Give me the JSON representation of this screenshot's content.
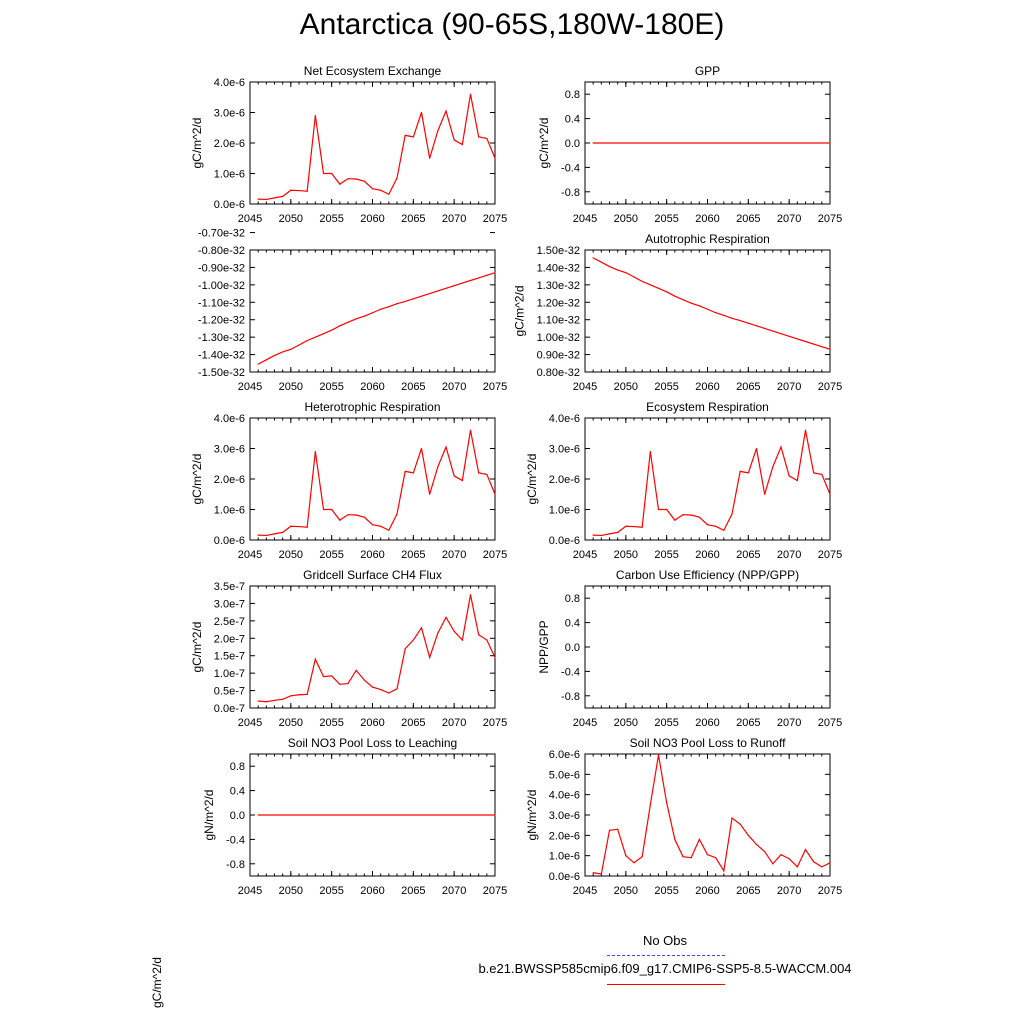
{
  "title": "Antarctica (90-65S,180W-180E)",
  "legend": {
    "obs_label": "No Obs",
    "model_label": "b.e21.BWSSP585cmip6.f09_g17.CMIP6-SSP5-8.5-WACCM.004",
    "obs_color": "#4444ff",
    "model_color": "#ff0000"
  },
  "stray_label": "gC/m^2/d",
  "chart_data": [
    {
      "id": "nee",
      "type": "line",
      "title": "Net Ecosystem Exchange",
      "ylabel": "gC/m^2/d",
      "xlabel": "",
      "xlim": [
        2045,
        2075
      ],
      "ylim": [
        0,
        4e-06
      ],
      "xticks": [
        2045,
        2050,
        2055,
        2060,
        2065,
        2070,
        2075
      ],
      "yticks": [
        0,
        1e-06,
        2e-06,
        3e-06,
        4e-06
      ],
      "ytick_labels": [
        "0.0e-6",
        "1.0e-6",
        "2.0e-6",
        "3.0e-6",
        "4.0e-6"
      ],
      "x": [
        2046,
        2047,
        2048,
        2049,
        2050,
        2051,
        2052,
        2053,
        2054,
        2055,
        2056,
        2057,
        2058,
        2059,
        2060,
        2061,
        2062,
        2063,
        2064,
        2065,
        2066,
        2067,
        2068,
        2069,
        2070,
        2071,
        2072,
        2073,
        2074,
        2075
      ],
      "y": [
        1.6e-07,
        1.5e-07,
        2e-07,
        2.5e-07,
        4.5e-07,
        4.4e-07,
        4.2e-07,
        2.9e-06,
        1e-06,
        1e-06,
        6.5e-07,
        8.3e-07,
        8.2e-07,
        7.5e-07,
        5e-07,
        4.5e-07,
        3.2e-07,
        8.5e-07,
        2.25e-06,
        2.2e-06,
        3e-06,
        1.5e-06,
        2.4e-06,
        3.05e-06,
        2.1e-06,
        1.95e-06,
        3.6e-06,
        2.2e-06,
        2.15e-06,
        1.5e-06
      ]
    },
    {
      "id": "gpp",
      "type": "line",
      "title": "GPP",
      "ylabel": "gC/m^2/d",
      "xlabel": "",
      "xlim": [
        2045,
        2075
      ],
      "ylim": [
        -1,
        1
      ],
      "xticks": [
        2045,
        2050,
        2055,
        2060,
        2065,
        2070,
        2075
      ],
      "yticks": [
        -0.8,
        -0.4,
        0,
        0.4,
        0.8
      ],
      "ytick_labels": [
        "-0.8",
        "-0.4",
        "0.0",
        "0.4",
        "0.8"
      ],
      "x": [
        2046,
        2075
      ],
      "y": [
        0,
        0
      ]
    },
    {
      "id": "npp",
      "type": "line",
      "title": "",
      "ylabel": "",
      "xlabel": "",
      "xlim": [
        2045,
        2075
      ],
      "ylim": [
        -1.5e-32,
        -8e-33
      ],
      "xticks": [
        2045,
        2050,
        2055,
        2060,
        2065,
        2070,
        2075
      ],
      "yticks": [
        -1.5e-32,
        -1.4e-32,
        -1.3e-32,
        -1.2e-32,
        -1.1e-32,
        -1e-32,
        -9e-33,
        -8e-33,
        -7e-33
      ],
      "ytick_labels": [
        "-1.50e-32",
        "-1.40e-32",
        "-1.30e-32",
        "-1.20e-32",
        "-1.10e-32",
        "-1.00e-32",
        "-0.90e-32",
        "-0.80e-32",
        "-0.70e-32"
      ],
      "x": [
        2046,
        2047,
        2048,
        2049,
        2050,
        2051,
        2052,
        2053,
        2054,
        2055,
        2056,
        2057,
        2058,
        2059,
        2060,
        2061,
        2062,
        2063,
        2064,
        2065,
        2066,
        2067,
        2068,
        2069,
        2070,
        2071,
        2072,
        2073,
        2074,
        2075
      ],
      "y": [
        -1.455e-32,
        -1.43e-32,
        -1.405e-32,
        -1.385e-32,
        -1.37e-32,
        -1.345e-32,
        -1.32e-32,
        -1.3e-32,
        -1.28e-32,
        -1.26e-32,
        -1.235e-32,
        -1.215e-32,
        -1.195e-32,
        -1.18e-32,
        -1.16e-32,
        -1.14e-32,
        -1.125e-32,
        -1.108e-32,
        -1.095e-32,
        -1.08e-32,
        -1.065e-32,
        -1.05e-32,
        -1.035e-32,
        -1.02e-32,
        -1.005e-32,
        -9.9e-33,
        -9.75e-33,
        -9.6e-33,
        -9.45e-33,
        -9.3e-33
      ]
    },
    {
      "id": "ar",
      "type": "line",
      "title": "Autotrophic Respiration",
      "ylabel": "gC/m^2/d",
      "xlabel": "",
      "xlim": [
        2045,
        2075
      ],
      "ylim": [
        8e-33,
        1.5e-32
      ],
      "xticks": [
        2045,
        2050,
        2055,
        2060,
        2065,
        2070,
        2075
      ],
      "yticks": [
        8e-33,
        9e-33,
        1e-32,
        1.1e-32,
        1.2e-32,
        1.3e-32,
        1.4e-32,
        1.5e-32
      ],
      "ytick_labels": [
        "0.80e-32",
        "0.90e-32",
        "1.00e-32",
        "1.10e-32",
        "1.20e-32",
        "1.30e-32",
        "1.40e-32",
        "1.50e-32"
      ],
      "x": [
        2046,
        2047,
        2048,
        2049,
        2050,
        2051,
        2052,
        2053,
        2054,
        2055,
        2056,
        2057,
        2058,
        2059,
        2060,
        2061,
        2062,
        2063,
        2064,
        2065,
        2066,
        2067,
        2068,
        2069,
        2070,
        2071,
        2072,
        2073,
        2074,
        2075
      ],
      "y": [
        1.455e-32,
        1.43e-32,
        1.405e-32,
        1.385e-32,
        1.37e-32,
        1.345e-32,
        1.32e-32,
        1.3e-32,
        1.28e-32,
        1.26e-32,
        1.235e-32,
        1.215e-32,
        1.195e-32,
        1.18e-32,
        1.16e-32,
        1.14e-32,
        1.125e-32,
        1.108e-32,
        1.095e-32,
        1.08e-32,
        1.065e-32,
        1.05e-32,
        1.035e-32,
        1.02e-32,
        1.005e-32,
        9.9e-33,
        9.75e-33,
        9.6e-33,
        9.45e-33,
        9.3e-33
      ]
    },
    {
      "id": "hr",
      "type": "line",
      "title": "Heterotrophic Respiration",
      "ylabel": "gC/m^2/d",
      "xlabel": "",
      "xlim": [
        2045,
        2075
      ],
      "ylim": [
        0,
        4e-06
      ],
      "xticks": [
        2045,
        2050,
        2055,
        2060,
        2065,
        2070,
        2075
      ],
      "yticks": [
        0,
        1e-06,
        2e-06,
        3e-06,
        4e-06
      ],
      "ytick_labels": [
        "0.0e-6",
        "1.0e-6",
        "2.0e-6",
        "3.0e-6",
        "4.0e-6"
      ],
      "x": [
        2046,
        2047,
        2048,
        2049,
        2050,
        2051,
        2052,
        2053,
        2054,
        2055,
        2056,
        2057,
        2058,
        2059,
        2060,
        2061,
        2062,
        2063,
        2064,
        2065,
        2066,
        2067,
        2068,
        2069,
        2070,
        2071,
        2072,
        2073,
        2074,
        2075
      ],
      "y": [
        1.6e-07,
        1.5e-07,
        2e-07,
        2.5e-07,
        4.5e-07,
        4.4e-07,
        4.2e-07,
        2.9e-06,
        1e-06,
        1e-06,
        6.5e-07,
        8.3e-07,
        8.2e-07,
        7.5e-07,
        5e-07,
        4.5e-07,
        3.2e-07,
        8.5e-07,
        2.25e-06,
        2.2e-06,
        3e-06,
        1.5e-06,
        2.4e-06,
        3.05e-06,
        2.1e-06,
        1.95e-06,
        3.6e-06,
        2.2e-06,
        2.15e-06,
        1.5e-06
      ]
    },
    {
      "id": "er",
      "type": "line",
      "title": "Ecosystem Respiration",
      "ylabel": "gC/m^2/d",
      "xlabel": "",
      "xlim": [
        2045,
        2075
      ],
      "ylim": [
        0,
        4e-06
      ],
      "xticks": [
        2045,
        2050,
        2055,
        2060,
        2065,
        2070,
        2075
      ],
      "yticks": [
        0,
        1e-06,
        2e-06,
        3e-06,
        4e-06
      ],
      "ytick_labels": [
        "0.0e-6",
        "1.0e-6",
        "2.0e-6",
        "3.0e-6",
        "4.0e-6"
      ],
      "x": [
        2046,
        2047,
        2048,
        2049,
        2050,
        2051,
        2052,
        2053,
        2054,
        2055,
        2056,
        2057,
        2058,
        2059,
        2060,
        2061,
        2062,
        2063,
        2064,
        2065,
        2066,
        2067,
        2068,
        2069,
        2070,
        2071,
        2072,
        2073,
        2074,
        2075
      ],
      "y": [
        1.6e-07,
        1.5e-07,
        2e-07,
        2.5e-07,
        4.5e-07,
        4.4e-07,
        4.2e-07,
        2.9e-06,
        1e-06,
        1e-06,
        6.5e-07,
        8.3e-07,
        8.2e-07,
        7.5e-07,
        5e-07,
        4.5e-07,
        3.2e-07,
        8.5e-07,
        2.25e-06,
        2.2e-06,
        3e-06,
        1.5e-06,
        2.4e-06,
        3.05e-06,
        2.1e-06,
        1.95e-06,
        3.6e-06,
        2.2e-06,
        2.15e-06,
        1.5e-06
      ]
    },
    {
      "id": "ch4",
      "type": "line",
      "title": "Gridcell Surface CH4 Flux",
      "ylabel": "gC/m^2/d",
      "xlabel": "",
      "xlim": [
        2045,
        2075
      ],
      "ylim": [
        0,
        3.5e-07
      ],
      "xticks": [
        2045,
        2050,
        2055,
        2060,
        2065,
        2070,
        2075
      ],
      "yticks": [
        0,
        5e-08,
        1e-07,
        1.5e-07,
        2e-07,
        2.5e-07,
        3e-07,
        3.5e-07
      ],
      "ytick_labels": [
        "0.0e-7",
        "0.5e-7",
        "1.0e-7",
        "1.5e-7",
        "2.0e-7",
        "2.5e-7",
        "3.0e-7",
        "3.5e-7"
      ],
      "x": [
        2046,
        2047,
        2048,
        2049,
        2050,
        2051,
        2052,
        2053,
        2054,
        2055,
        2056,
        2057,
        2058,
        2059,
        2060,
        2061,
        2062,
        2063,
        2064,
        2065,
        2066,
        2067,
        2068,
        2069,
        2070,
        2071,
        2072,
        2073,
        2074,
        2075
      ],
      "y": [
        2e-08,
        1.8e-08,
        2.2e-08,
        2.5e-08,
        3.5e-08,
        3.8e-08,
        3.9e-08,
        1.4e-07,
        9e-08,
        9.2e-08,
        6.8e-08,
        7e-08,
        1.08e-07,
        8e-08,
        6e-08,
        5.3e-08,
        4.3e-08,
        5.5e-08,
        1.7e-07,
        1.95e-07,
        2.3e-07,
        1.45e-07,
        2.15e-07,
        2.6e-07,
        2.2e-07,
        1.95e-07,
        3.25e-07,
        2.1e-07,
        1.95e-07,
        1.45e-07
      ]
    },
    {
      "id": "cue",
      "type": "line",
      "title": "Carbon Use Efficiency (NPP/GPP)",
      "ylabel": "NPP/GPP",
      "xlabel": "",
      "xlim": [
        2045,
        2075
      ],
      "ylim": [
        -1,
        1
      ],
      "xticks": [
        2045,
        2050,
        2055,
        2060,
        2065,
        2070,
        2075
      ],
      "yticks": [
        -0.8,
        -0.4,
        0,
        0.4,
        0.8
      ],
      "ytick_labels": [
        "-0.8",
        "-0.4",
        "0.0",
        "0.4",
        "0.8"
      ],
      "x": [],
      "y": []
    },
    {
      "id": "leach",
      "type": "line",
      "title": "Soil NO3 Pool Loss to Leaching",
      "ylabel": "gN/m^2/d",
      "xlabel": "",
      "xlim": [
        2045,
        2075
      ],
      "ylim": [
        -1,
        1
      ],
      "xticks": [
        2045,
        2050,
        2055,
        2060,
        2065,
        2070,
        2075
      ],
      "yticks": [
        -0.8,
        -0.4,
        0,
        0.4,
        0.8
      ],
      "ytick_labels": [
        "-0.8",
        "-0.4",
        "0.0",
        "0.4",
        "0.8"
      ],
      "x": [
        2046,
        2075
      ],
      "y": [
        0,
        0
      ]
    },
    {
      "id": "runoff",
      "type": "line",
      "title": "Soil NO3 Pool Loss to Runoff",
      "ylabel": "gN/m^2/d",
      "xlabel": "",
      "xlim": [
        2045,
        2075
      ],
      "ylim": [
        0,
        6e-06
      ],
      "xticks": [
        2045,
        2050,
        2055,
        2060,
        2065,
        2070,
        2075
      ],
      "yticks": [
        0,
        1e-06,
        2e-06,
        3e-06,
        4e-06,
        5e-06,
        6e-06
      ],
      "ytick_labels": [
        "0.0e-6",
        "1.0e-6",
        "2.0e-6",
        "3.0e-6",
        "4.0e-6",
        "5.0e-6",
        "6.0e-6"
      ],
      "x": [
        2046,
        2047,
        2048,
        2049,
        2050,
        2051,
        2052,
        2053,
        2054,
        2055,
        2056,
        2057,
        2058,
        2059,
        2060,
        2061,
        2062,
        2063,
        2064,
        2065,
        2066,
        2067,
        2068,
        2069,
        2070,
        2071,
        2072,
        2073,
        2074,
        2075
      ],
      "y": [
        1.6e-07,
        1e-07,
        2.25e-06,
        2.3e-06,
        1e-06,
        6.5e-07,
        9.5e-07,
        3.5e-06,
        5.95e-06,
        3.6e-06,
        1.8e-06,
        9.5e-07,
        9e-07,
        1.8e-06,
        1.05e-06,
        9e-07,
        2.5e-07,
        2.85e-06,
        2.55e-06,
        2e-06,
        1.55e-06,
        1.2e-06,
        6e-07,
        1.05e-06,
        8.5e-07,
        4.5e-07,
        1.3e-06,
        7e-07,
        4.5e-07,
        6.5e-07
      ]
    }
  ]
}
